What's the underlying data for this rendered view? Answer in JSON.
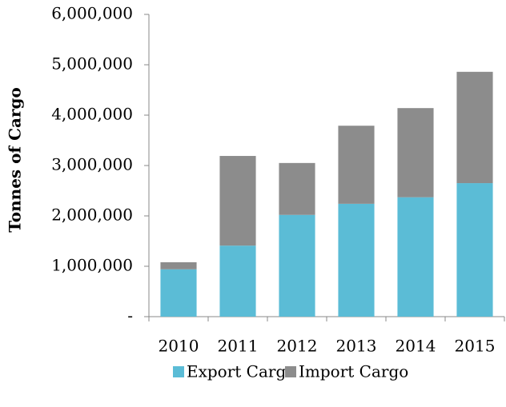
{
  "chart_data": {
    "type": "stacked_bar",
    "y_label": "Tonnes of Cargo",
    "categories": [
      "2010",
      "2011",
      "2012",
      "2013",
      "2014",
      "2015"
    ],
    "series": [
      {
        "name": "Export Cargo",
        "color": "#5bbcd6",
        "values": [
          940000,
          1410000,
          2020000,
          2240000,
          2370000,
          2650000
        ]
      },
      {
        "name": "Import Cargo",
        "color": "#8c8c8c",
        "values": [
          140000,
          1780000,
          1030000,
          1550000,
          1770000,
          2210000
        ]
      }
    ],
    "ylim": [
      0,
      6000000
    ],
    "yticks": [
      {
        "value": 0,
        "label": "-"
      },
      {
        "value": 1000000,
        "label": "1,000,000"
      },
      {
        "value": 2000000,
        "label": "2,000,000"
      },
      {
        "value": 3000000,
        "label": "3,000,000"
      },
      {
        "value": 4000000,
        "label": "4,000,000"
      },
      {
        "value": 5000000,
        "label": "5,000,000"
      },
      {
        "value": 6000000,
        "label": "6,000,000"
      }
    ],
    "legend": "bottom"
  }
}
